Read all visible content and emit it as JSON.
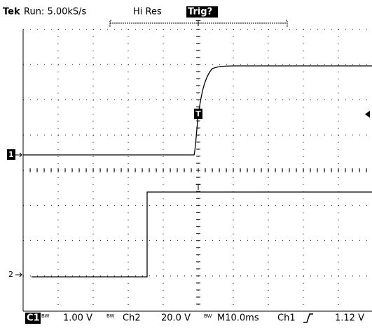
{
  "header": {
    "brand": "Tek",
    "status": "Run: 5.00kS/s",
    "mode": "Hi Res",
    "trigger_state": "Trig?"
  },
  "markers": {
    "ch1": "1",
    "ch2": "2",
    "trigger": "T"
  },
  "footer": {
    "ch1_label": "C1",
    "ch1_scale": "1.00 V",
    "ch1_bw": "BW",
    "ch2_label": "Ch2",
    "ch2_scale": "20.0 V",
    "ch2_bw": "BW",
    "timebase": "M10.0ms",
    "trigger_source": "Ch1",
    "trigger_level": "1.12 V"
  }
}
